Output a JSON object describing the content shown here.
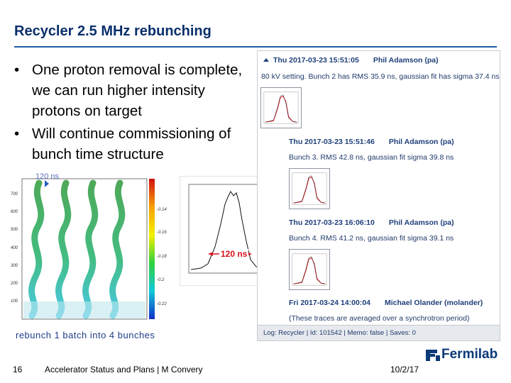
{
  "slide": {
    "title": "Recycler 2.5 MHz rebunching",
    "bullets": [
      "One proton removal is complete, we can run higher intensity protons on target",
      "Will continue commissioning of bunch time structure"
    ]
  },
  "logbook": {
    "entries": [
      {
        "timestamp": "Thu 2017-03-23 15:51:05",
        "author": "Phil Adamson (pa)",
        "text": "80 kV setting. Bunch 2 has RMS 35.9 ns, gaussian fit has sigma 37.4 ns"
      },
      {
        "timestamp": "Thu 2017-03-23 15:51:46",
        "author": "Phil Adamson (pa)",
        "text": "Bunch 3. RMS 42.8 ns, gaussian fit sigma 39.8 ns"
      },
      {
        "timestamp": "Thu 2017-03-23 16:06:10",
        "author": "Phil Adamson (pa)",
        "text": "Bunch 4. RMS 41.2 ns, gaussian fit sigma 39.1 ns"
      },
      {
        "timestamp": "Fri 2017-03-24 14:00:04",
        "author": "Michael Olander (molander)",
        "text": "(These traces are averaged over a synchrotron period)"
      }
    ],
    "footer": "Log: Recycler | Id: 101542 | Memo: false | Saves: 0"
  },
  "plots": {
    "waterfall_annotation": "120 ns",
    "waterfall_caption": "rebunch 1 batch into 4 bunches",
    "profile_annotation": "120 ns",
    "colors": {
      "peak_red": "#d8101a",
      "annotation_blue": "#5a6dbc"
    }
  },
  "footer": {
    "page_number": "16",
    "text": "Accelerator Status and Plans | M Convery",
    "date": "10/2/17",
    "logo": "Fermilab"
  }
}
